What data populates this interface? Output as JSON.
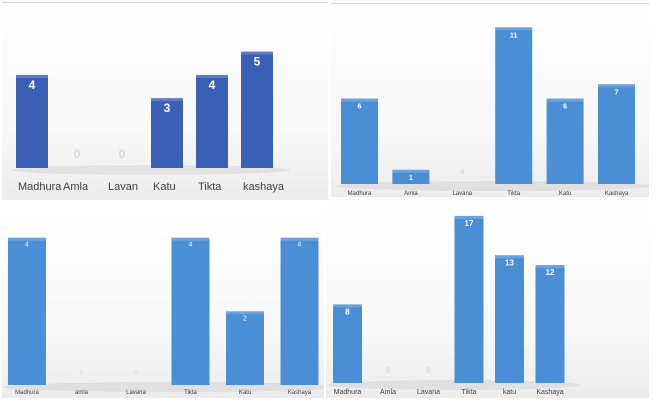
{
  "chart_data": [
    {
      "type": "bar",
      "categories": [
        "Madhura",
        "Amla",
        "Lavan",
        "Katu",
        "Tikta",
        "kashaya"
      ],
      "values": [
        4,
        0,
        0,
        3,
        4,
        5
      ],
      "title": "",
      "xlabel": "",
      "ylabel": "",
      "ylim": [
        0,
        5.5
      ],
      "grid": false,
      "color": "#3a60b6",
      "label_color": "#ffffff",
      "zero_label_color": "#d9d9d9"
    },
    {
      "type": "bar",
      "categories": [
        "Madhura",
        "Amla",
        "Lavana",
        "Tikta",
        "Katu",
        "Kashaya"
      ],
      "values": [
        6,
        1,
        0,
        11,
        6,
        7
      ],
      "title": "",
      "xlabel": "",
      "ylabel": "",
      "ylim": [
        0,
        11.3
      ],
      "grid": false,
      "color": "#4a8fd6",
      "label_color": "#ffffff",
      "zero_label_color": "#d9d9d9"
    },
    {
      "type": "bar",
      "categories": [
        "Madhura",
        "amla",
        "Lavana",
        "Tikta",
        "Katu",
        "Kashaya"
      ],
      "values": [
        4,
        0,
        0,
        4,
        2,
        4
      ],
      "title": "",
      "xlabel": "",
      "ylabel": "",
      "ylim": [
        0,
        4.1
      ],
      "grid": false,
      "color": "#4a8fd6",
      "label_color": "#ffffff",
      "zero_label_color": "#d9d9d9"
    },
    {
      "type": "bar",
      "categories": [
        "Madhura",
        "Amla",
        "Lavana",
        "Tikta",
        "katu",
        "Kashaya"
      ],
      "values": [
        8,
        0,
        0,
        17,
        13,
        12
      ],
      "title": "",
      "xlabel": "",
      "ylabel": "",
      "ylim": [
        0,
        17.3
      ],
      "grid": false,
      "color": "#4a8fd6",
      "label_color": "#ffffff",
      "zero_label_color": "#d9d9d9"
    }
  ]
}
